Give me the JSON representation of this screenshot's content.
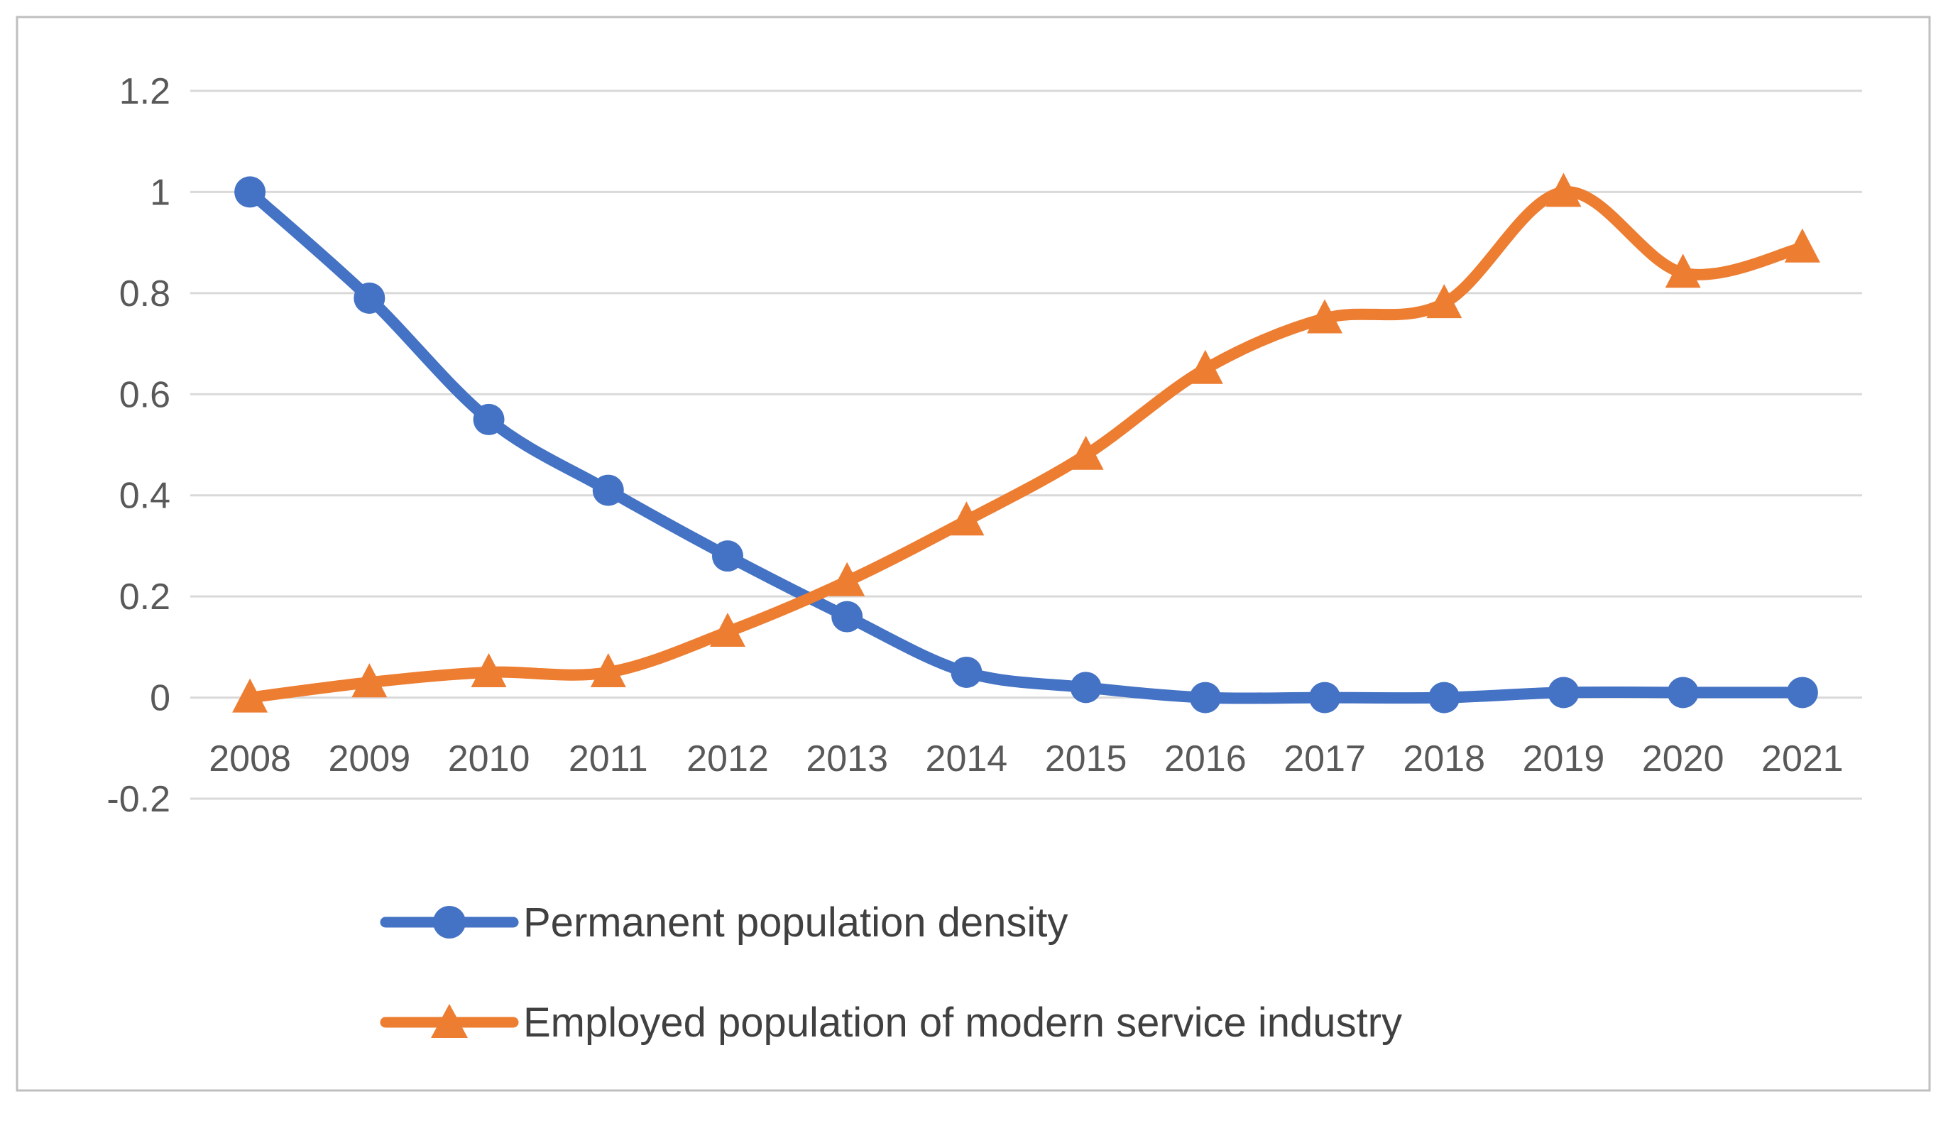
{
  "chart_data": {
    "type": "line",
    "title": "",
    "xlabel": "",
    "ylabel": "",
    "categories": [
      "2008",
      "2009",
      "2010",
      "2011",
      "2012",
      "2013",
      "2014",
      "2015",
      "2016",
      "2017",
      "2018",
      "2019",
      "2020",
      "2021"
    ],
    "series": [
      {
        "name": "Permanent population density",
        "color": "#4472C4",
        "marker": "circle",
        "smooth": true,
        "values": [
          1.0,
          0.79,
          0.55,
          0.41,
          0.28,
          0.16,
          0.05,
          0.02,
          0.0,
          0.0,
          0.0,
          0.01,
          0.01,
          0.01
        ]
      },
      {
        "name": "Employed population of modern service industry",
        "color": "#ED7D31",
        "marker": "triangle",
        "smooth": true,
        "values": [
          0.0,
          0.03,
          0.05,
          0.05,
          0.13,
          0.23,
          0.35,
          0.48,
          0.65,
          0.75,
          0.78,
          1.0,
          0.84,
          0.89
        ]
      }
    ],
    "yticks": [
      {
        "label": "1.2",
        "value": 1.2
      },
      {
        "label": "1",
        "value": 1.0
      },
      {
        "label": "0.8",
        "value": 0.8
      },
      {
        "label": "0.6",
        "value": 0.6
      },
      {
        "label": "0.4",
        "value": 0.4
      },
      {
        "label": "0.2",
        "value": 0.2
      },
      {
        "label": "0",
        "value": 0.0
      },
      {
        "label": "-0.2",
        "value": -0.2
      }
    ],
    "ylim": [
      -0.2,
      1.2
    ],
    "grid": true,
    "legend_position": "bottom-left",
    "colors": {
      "gridline": "#D9D9D9",
      "axis_text": "#595959",
      "legend_text": "#404040",
      "frame_border": "#BFBFBF",
      "background": "#FFFFFF"
    }
  }
}
